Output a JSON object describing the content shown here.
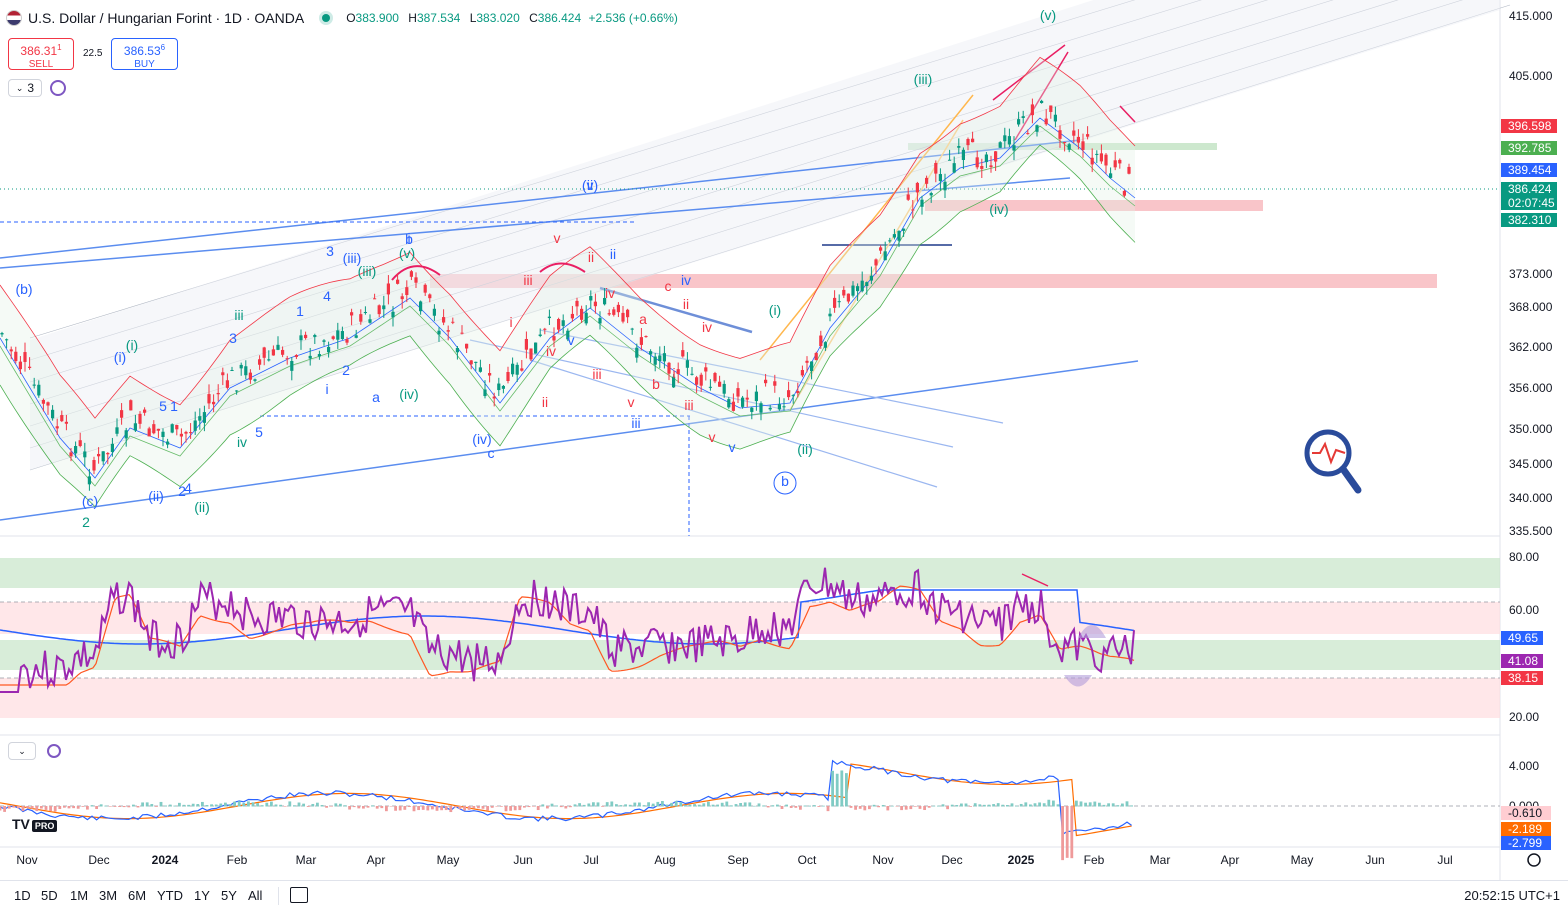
{
  "header": {
    "title": "U.S. Dollar / Hungarian Forint · 1D · OANDA",
    "open_label": "O",
    "open": "383.900",
    "high_label": "H",
    "high": "387.534",
    "low_label": "L",
    "low": "383.020",
    "close_label": "C",
    "close": "386.424",
    "change": "+2.536 (+0.66%)"
  },
  "trade": {
    "sell_price": "386.31",
    "sell_sup": "1",
    "sell_label": "SELL",
    "spread": "22.5",
    "buy_price": "386.53",
    "buy_sup": "6",
    "buy_label": "BUY"
  },
  "indicator_toggle": {
    "count": "3"
  },
  "price_axis": [
    "415.000",
    "405.000",
    "373.000",
    "368.000",
    "362.000",
    "356.000",
    "350.000",
    "345.000",
    "340.000",
    "335.500"
  ],
  "price_tags": [
    {
      "value": "396.598",
      "color": "#f23645"
    },
    {
      "value": "392.785",
      "color": "#4caf50"
    },
    {
      "value": "389.454",
      "color": "#2962ff"
    },
    {
      "value": "386.424",
      "color": "#089981"
    },
    {
      "value": "02:07:45",
      "color": "#089981"
    },
    {
      "value": "382.310",
      "color": "#089981"
    }
  ],
  "rsi_axis": [
    "80.00",
    "60.00",
    "20.00"
  ],
  "rsi_tags": [
    {
      "value": "49.65",
      "color": "#2962ff"
    },
    {
      "value": "41.08",
      "color": "#9c27b0"
    },
    {
      "value": "38.15",
      "color": "#f23645"
    }
  ],
  "macd_axis": [
    "4.000",
    "0.000"
  ],
  "macd_tags": [
    {
      "value": "-0.610",
      "color": "#ffcdd2",
      "text": "#131722"
    },
    {
      "value": "-2.189",
      "color": "#ff6d00",
      "text": "#ffffff"
    },
    {
      "value": "-2.799",
      "color": "#2962ff",
      "text": "#ffffff"
    }
  ],
  "time_axis": [
    "Nov",
    "Dec",
    "2024",
    "Feb",
    "Mar",
    "Apr",
    "May",
    "Jun",
    "Jul",
    "Aug",
    "Sep",
    "Oct",
    "Nov",
    "Dec",
    "2025",
    "Feb",
    "Mar",
    "Apr",
    "May",
    "Jun",
    "Jul"
  ],
  "wave_labels": [
    {
      "t": "(v)",
      "c": "#089981"
    },
    {
      "t": "(iii)",
      "c": "#089981"
    },
    {
      "t": "(iv)",
      "c": "#089981"
    },
    {
      "t": "(v)",
      "c": "#2962ff"
    },
    {
      "t": "(b)",
      "c": "#2962ff"
    },
    {
      "t": "(i)",
      "c": "#2962ff"
    },
    {
      "t": "(i)",
      "c": "#089981"
    },
    {
      "t": "(c)",
      "c": "#2962ff"
    },
    {
      "t": "2",
      "c": "#089981"
    },
    {
      "t": "(ii)",
      "c": "#2962ff"
    },
    {
      "t": "(ii)",
      "c": "#089981"
    },
    {
      "t": "iii",
      "c": "#089981"
    },
    {
      "t": "iv",
      "c": "#089981"
    },
    {
      "t": "b",
      "c": "#2962ff"
    },
    {
      "t": "(v)",
      "c": "#089981"
    },
    {
      "t": "(iii)",
      "c": "#2962ff"
    },
    {
      "t": "(iii)",
      "c": "#089981"
    },
    {
      "t": "(iv)",
      "c": "#089981"
    },
    {
      "t": "(iv)",
      "c": "#2962ff"
    },
    {
      "t": "a",
      "c": "#2962ff"
    },
    {
      "t": "c",
      "c": "#2962ff"
    },
    {
      "t": "iii",
      "c": "#f23645"
    },
    {
      "t": "v",
      "c": "#f23645"
    },
    {
      "t": "ii",
      "c": "#f23645"
    },
    {
      "t": "ii",
      "c": "#2962ff"
    },
    {
      "t": "iv",
      "c": "#2962ff"
    },
    {
      "t": "c",
      "c": "#f23645"
    },
    {
      "t": "ii",
      "c": "#f23645"
    },
    {
      "t": "iv",
      "c": "#f23645"
    },
    {
      "t": "i",
      "c": "#f23645"
    },
    {
      "t": "iv",
      "c": "#f23645"
    },
    {
      "t": "iv",
      "c": "#f23645"
    },
    {
      "t": "a",
      "c": "#f23645"
    },
    {
      "t": "b",
      "c": "#f23645"
    },
    {
      "t": "i",
      "c": "#f23645"
    },
    {
      "t": "iii",
      "c": "#f23645"
    },
    {
      "t": "ii",
      "c": "#f23645"
    },
    {
      "t": "v",
      "c": "#f23645"
    },
    {
      "t": "iii",
      "c": "#f23645"
    },
    {
      "t": "iii",
      "c": "#2962ff"
    },
    {
      "t": "v",
      "c": "#f23645"
    },
    {
      "t": "v",
      "c": "#2962ff"
    },
    {
      "t": "(i)",
      "c": "#089981"
    },
    {
      "t": "(ii)",
      "c": "#089981"
    },
    {
      "t": "b",
      "c": "#2962ff"
    },
    {
      "t": "i",
      "c": "#2962ff"
    },
    {
      "t": "v",
      "c": "#2962ff"
    },
    {
      "t": "5",
      "c": "#2962ff"
    },
    {
      "t": "3",
      "c": "#2962ff"
    },
    {
      "t": "1",
      "c": "#2962ff"
    },
    {
      "t": "4",
      "c": "#2962ff"
    },
    {
      "t": "2",
      "c": "#2962ff"
    },
    {
      "t": "i",
      "c": "#2962ff"
    },
    {
      "t": "1",
      "c": "#2962ff"
    },
    {
      "t": "3",
      "c": "#2962ff"
    },
    {
      "t": "5",
      "c": "#2962ff"
    },
    {
      "t": "4",
      "c": "#2962ff"
    },
    {
      "t": "2",
      "c": "#2962ff"
    },
    {
      "t": "ii",
      "c": "#2962ff"
    },
    {
      "t": "i",
      "c": "#f23645"
    }
  ],
  "brand": {
    "logo": "TV",
    "plan": "PRO"
  },
  "bottom": {
    "ranges": [
      "1D",
      "5D",
      "1M",
      "3M",
      "6M",
      "YTD",
      "1Y",
      "5Y",
      "All"
    ],
    "clock": "20:52:15 UTC+1"
  },
  "colors": {
    "up": "#089981",
    "down": "#f23645",
    "rsi": "#9c27b0",
    "rsi_ma": "#ff5722",
    "ma_blue": "#2962ff",
    "zone_red": "#f8bbc0",
    "zone_green": "#c8e6c9"
  }
}
